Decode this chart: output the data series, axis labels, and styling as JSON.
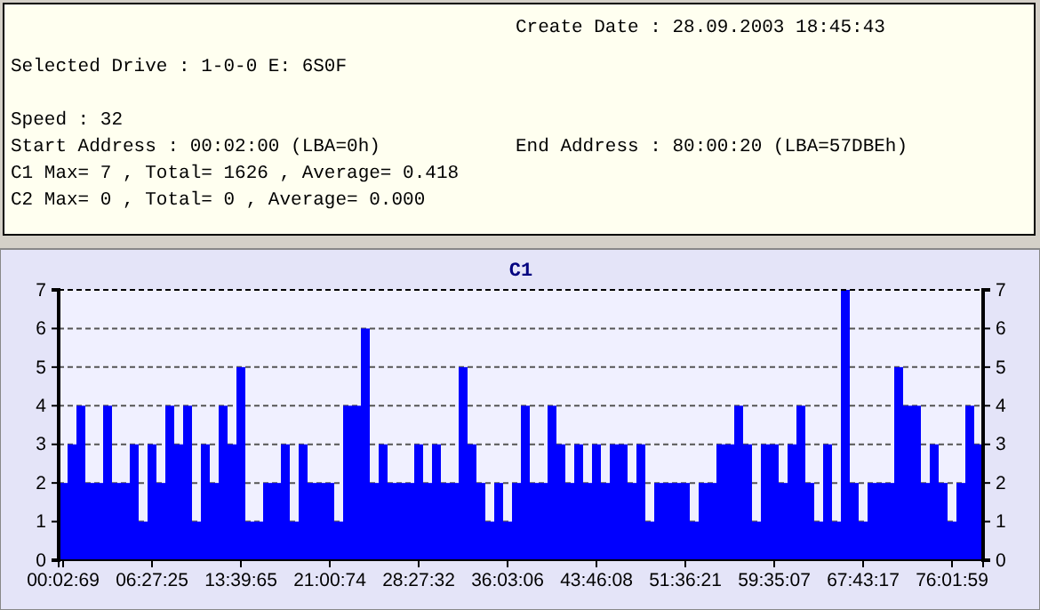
{
  "chart_data": [
    {
      "type": "other",
      "annotations": [
        "Create Date : 28.09.2003 18:45:43",
        "Selected Drive : 1-0-0 E: 6S0F",
        "Speed : 32",
        "Start Address : 00:02:00 (LBA=0h)",
        "End Address : 80:00:20 (LBA=57DBEh)",
        "C1 Max= 7 , Total= 1626 , Average= 0.418",
        "C2 Max= 0 , Total= 0 , Average= 0.000"
      ]
    },
    {
      "type": "bar",
      "title": "C1",
      "color": "#0000ff",
      "categories": [
        "00:02:69",
        null,
        null,
        null,
        null,
        null,
        null,
        null,
        null,
        null,
        "06:27:25",
        null,
        null,
        null,
        null,
        null,
        null,
        null,
        null,
        null,
        "13:39:65",
        null,
        null,
        null,
        null,
        null,
        null,
        null,
        null,
        null,
        "21:00:74",
        null,
        null,
        null,
        null,
        null,
        null,
        null,
        null,
        null,
        "28:27:32",
        null,
        null,
        null,
        null,
        null,
        null,
        null,
        null,
        null,
        "36:03:06",
        null,
        null,
        null,
        null,
        null,
        null,
        null,
        null,
        null,
        "43:46:08",
        null,
        null,
        null,
        null,
        null,
        null,
        null,
        null,
        null,
        "51:36:21",
        null,
        null,
        null,
        null,
        null,
        null,
        null,
        null,
        null,
        "59:35:07",
        null,
        null,
        null,
        null,
        null,
        null,
        null,
        null,
        null,
        "67:43:17",
        null,
        null,
        null,
        null,
        null,
        null,
        null,
        null,
        null,
        "76:01:59",
        null,
        null,
        null
      ],
      "values": [
        2,
        3,
        4,
        2,
        2,
        4,
        2,
        2,
        3,
        1,
        3,
        2,
        4,
        3,
        4,
        1,
        3,
        2,
        4,
        3,
        5,
        1,
        1,
        2,
        2,
        3,
        1,
        3,
        2,
        2,
        2,
        1,
        4,
        4,
        6,
        2,
        3,
        2,
        2,
        2,
        3,
        2,
        3,
        2,
        2,
        5,
        3,
        2,
        1,
        2,
        1,
        2,
        4,
        2,
        2,
        4,
        3,
        2,
        3,
        2,
        3,
        2,
        3,
        3,
        2,
        3,
        1,
        2,
        2,
        2,
        2,
        1,
        2,
        2,
        3,
        3,
        4,
        3,
        1,
        3,
        3,
        2,
        3,
        4,
        2,
        1,
        3,
        1,
        7,
        2,
        1,
        2,
        2,
        2,
        5,
        4,
        4,
        2,
        3,
        2,
        1,
        2,
        4,
        3
      ],
      "ylim": [
        0,
        7
      ],
      "yticks": [
        0,
        1,
        2,
        3,
        4,
        5,
        6,
        7
      ],
      "y2lim": [
        0,
        7
      ],
      "y2ticks": [
        0,
        1,
        2,
        3,
        4,
        5,
        6,
        7
      ],
      "grid": "y"
    }
  ]
}
